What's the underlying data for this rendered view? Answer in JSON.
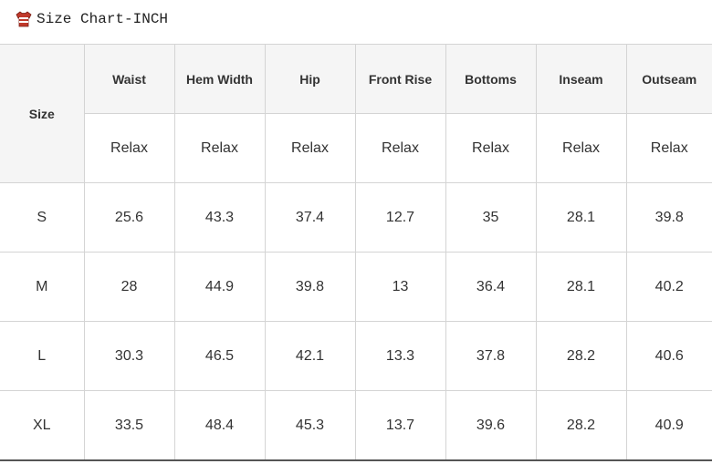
{
  "header": {
    "title": "Size Chart-INCH"
  },
  "table": {
    "corner": "Size",
    "columns": [
      "Waist",
      "Hem Width",
      "Hip",
      "Front Rise",
      "Bottoms",
      "Inseam",
      "Outseam"
    ],
    "subheaders": [
      "Relax",
      "Relax",
      "Relax",
      "Relax",
      "Relax",
      "Relax",
      "Relax"
    ],
    "rows": [
      [
        "S",
        25.6,
        43.3,
        37.4,
        12.7,
        35,
        28.1,
        39.8
      ],
      [
        "M",
        28,
        44.9,
        39.8,
        13,
        36.4,
        28.1,
        40.2
      ],
      [
        "L",
        30.3,
        46.5,
        42.1,
        13.3,
        37.8,
        28.2,
        40.6
      ],
      [
        "XL",
        33.5,
        48.4,
        45.3,
        13.7,
        39.6,
        28.2,
        40.9
      ]
    ]
  }
}
